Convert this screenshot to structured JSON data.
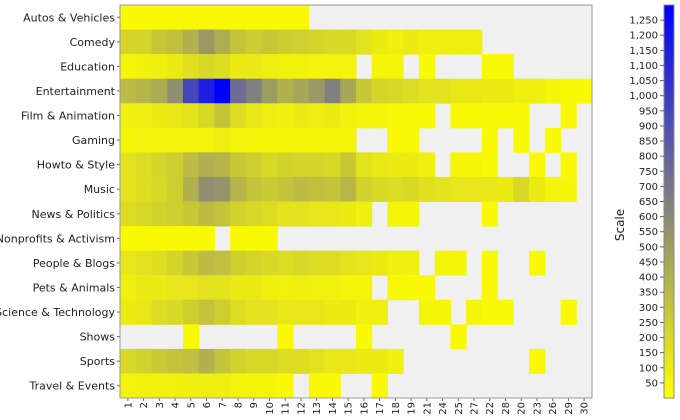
{
  "chart_data": {
    "type": "heatmap",
    "rows": [
      "Autos & Vehicles",
      "Comedy",
      "Education",
      "Entertainment",
      "Film & Animation",
      "Gaming",
      "Howto & Style",
      "Music",
      "News & Politics",
      "Nonprofits & Activism",
      "People & Blogs",
      "Pets & Animals",
      "Science & Technology",
      "Shows",
      "Sports",
      "Travel & Events"
    ],
    "columns": [
      "1",
      "2",
      "3",
      "4",
      "5",
      "6",
      "7",
      "8",
      "9",
      "10",
      "11",
      "12",
      "13",
      "14",
      "15",
      "16",
      "17",
      "18",
      "19",
      "21",
      "24",
      "25",
      "27",
      "22",
      "28",
      "20",
      "23",
      "26",
      "29",
      "30"
    ],
    "values": [
      [
        30,
        30,
        30,
        30,
        30,
        30,
        30,
        30,
        30,
        30,
        30,
        30,
        null,
        null,
        null,
        null,
        null,
        null,
        null,
        null,
        null,
        null,
        null,
        null,
        null,
        null,
        null,
        null,
        null,
        null
      ],
      [
        220,
        220,
        280,
        320,
        400,
        520,
        420,
        300,
        260,
        280,
        260,
        240,
        220,
        200,
        200,
        150,
        100,
        80,
        100,
        80,
        80,
        80,
        80,
        null,
        null,
        null,
        null,
        null,
        null,
        null
      ],
      [
        50,
        70,
        80,
        100,
        160,
        200,
        170,
        110,
        110,
        80,
        70,
        70,
        60,
        60,
        60,
        null,
        50,
        50,
        null,
        30,
        null,
        null,
        null,
        30,
        30,
        null,
        null,
        null,
        null,
        null
      ],
      [
        350,
        380,
        430,
        570,
        950,
        1150,
        1300,
        750,
        650,
        500,
        400,
        450,
        520,
        650,
        450,
        280,
        220,
        200,
        180,
        150,
        150,
        120,
        120,
        100,
        100,
        80,
        80,
        50,
        30,
        30
      ],
      [
        80,
        90,
        100,
        120,
        150,
        200,
        300,
        180,
        120,
        90,
        80,
        100,
        90,
        100,
        70,
        50,
        50,
        40,
        30,
        30,
        null,
        30,
        30,
        30,
        30,
        30,
        null,
        null,
        30,
        null
      ],
      [
        50,
        60,
        60,
        60,
        60,
        60,
        90,
        60,
        50,
        50,
        50,
        50,
        50,
        50,
        50,
        null,
        null,
        30,
        30,
        null,
        null,
        null,
        null,
        30,
        null,
        30,
        null,
        30,
        null,
        null
      ],
      [
        150,
        180,
        220,
        250,
        350,
        400,
        380,
        280,
        250,
        200,
        230,
        220,
        220,
        200,
        280,
        150,
        120,
        100,
        100,
        80,
        null,
        50,
        50,
        30,
        null,
        null,
        30,
        null,
        30,
        null
      ],
      [
        150,
        170,
        200,
        250,
        400,
        570,
        550,
        380,
        300,
        270,
        300,
        350,
        320,
        300,
        370,
        230,
        200,
        180,
        200,
        160,
        140,
        130,
        130,
        120,
        100,
        200,
        100,
        60,
        50,
        null
      ],
      [
        180,
        200,
        230,
        250,
        280,
        350,
        300,
        230,
        200,
        180,
        150,
        150,
        130,
        130,
        100,
        80,
        null,
        50,
        50,
        null,
        null,
        null,
        null,
        30,
        null,
        null,
        null,
        null,
        null,
        null
      ],
      [
        30,
        30,
        30,
        30,
        30,
        30,
        null,
        30,
        30,
        30,
        null,
        null,
        null,
        null,
        null,
        null,
        null,
        null,
        null,
        null,
        null,
        null,
        null,
        null,
        null,
        null,
        null,
        null,
        null,
        null
      ],
      [
        130,
        150,
        170,
        220,
        280,
        350,
        330,
        250,
        220,
        200,
        180,
        200,
        180,
        180,
        150,
        130,
        100,
        80,
        80,
        null,
        50,
        50,
        null,
        30,
        null,
        null,
        30,
        null,
        null,
        null
      ],
      [
        80,
        100,
        110,
        130,
        130,
        150,
        140,
        110,
        100,
        80,
        70,
        80,
        70,
        70,
        50,
        50,
        null,
        40,
        30,
        30,
        null,
        null,
        null,
        30,
        null,
        null,
        null,
        null,
        null,
        null
      ],
      [
        100,
        120,
        180,
        200,
        250,
        300,
        250,
        180,
        150,
        150,
        120,
        130,
        130,
        100,
        100,
        80,
        80,
        null,
        null,
        50,
        50,
        null,
        50,
        30,
        30,
        null,
        null,
        null,
        30,
        null
      ],
      [
        null,
        null,
        null,
        null,
        30,
        null,
        null,
        null,
        null,
        null,
        30,
        null,
        null,
        null,
        null,
        30,
        null,
        null,
        null,
        null,
        null,
        30,
        null,
        null,
        null,
        null,
        null,
        null,
        null,
        null
      ],
      [
        200,
        230,
        270,
        300,
        330,
        400,
        300,
        230,
        200,
        200,
        180,
        170,
        150,
        120,
        120,
        100,
        100,
        80,
        null,
        null,
        null,
        null,
        null,
        null,
        null,
        null,
        30,
        null,
        null,
        null
      ],
      [
        60,
        70,
        70,
        70,
        80,
        90,
        80,
        60,
        50,
        50,
        30,
        null,
        30,
        30,
        null,
        null,
        30,
        null,
        null,
        null,
        null,
        null,
        null,
        null,
        null,
        null,
        null,
        null,
        null,
        null
      ]
    ],
    "scale": {
      "title": "Scale",
      "min": 0,
      "max": 1300,
      "ticks": [
        50,
        100,
        150,
        200,
        250,
        300,
        350,
        400,
        450,
        500,
        550,
        600,
        650,
        700,
        750,
        800,
        850,
        900,
        950,
        1000,
        1050,
        1100,
        1150,
        1200,
        1250
      ],
      "tick_labels": [
        "50",
        "100",
        "150",
        "200",
        "250",
        "300",
        "350",
        "400",
        "450",
        "500",
        "550",
        "600",
        "650",
        "700",
        "750",
        "800",
        "850",
        "900",
        "950",
        "1,000",
        "1,050",
        "1,100",
        "1,150",
        "1,200",
        "1,250"
      ],
      "low_color": "#ffff00",
      "mid_color": "#808080",
      "high_color": "#0000ff"
    },
    "missing_color": "#f0f0f0",
    "grid": false,
    "legend": "right"
  }
}
